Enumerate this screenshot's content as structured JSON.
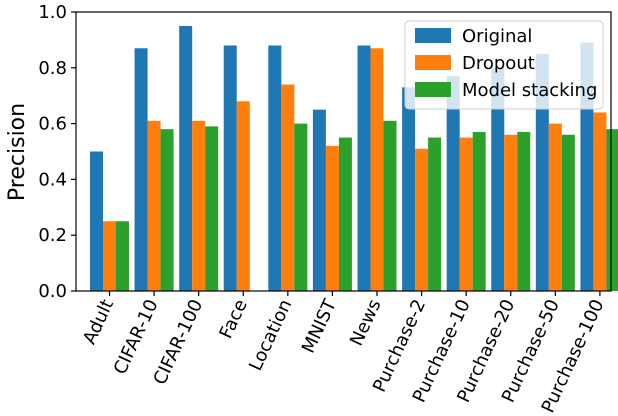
{
  "chart_data": {
    "type": "bar",
    "ylabel": "Precision",
    "ylim": [
      0,
      1.0
    ],
    "yticks": [
      "0.0",
      "0.2",
      "0.4",
      "0.6",
      "0.8",
      "1.0"
    ],
    "categories": [
      "Adult",
      "CIFAR-10",
      "CIFAR-100",
      "Face",
      "Location",
      "MNIST",
      "News",
      "Purchase-2",
      "Purchase-10",
      "Purchase-20",
      "Purchase-50",
      "Purchase-100"
    ],
    "series": [
      {
        "name": "Original",
        "color": "#1f77b4",
        "values": [
          0.5,
          0.87,
          0.95,
          0.88,
          0.88,
          0.65,
          0.88,
          0.73,
          0.77,
          0.8,
          0.85,
          0.89
        ]
      },
      {
        "name": "Dropout",
        "color": "#ff7f0e",
        "values": [
          0.25,
          0.61,
          0.61,
          0.68,
          0.74,
          0.52,
          0.87,
          0.51,
          0.55,
          0.56,
          0.6,
          0.64
        ]
      },
      {
        "name": "Model stacking",
        "color": "#2ca02c",
        "values": [
          0.25,
          0.58,
          0.59,
          null,
          0.6,
          0.55,
          0.61,
          0.55,
          0.57,
          0.57,
          0.56,
          0.58
        ]
      }
    ],
    "legend": "top-right",
    "grid": false
  }
}
